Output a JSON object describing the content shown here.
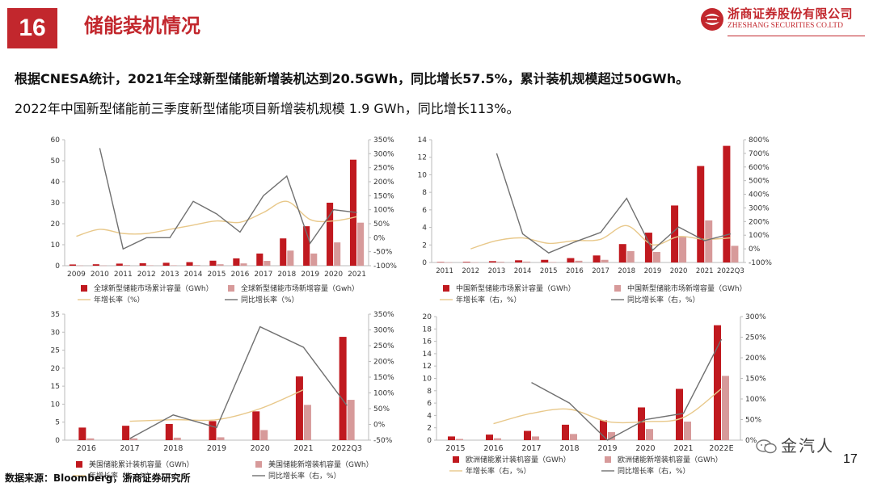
{
  "header": {
    "section_number": "16",
    "title": "储能装机情况",
    "logo_cn": "浙商证券股份有限公司",
    "logo_en": "ZHESHANG SECURITIES CO.LTD"
  },
  "summary": {
    "line1": "根据CNESA统计，2021年全球新型储能新增装机达到20.5GWh，同比增长57.5%，累计装机规模超过50GWh。",
    "line2": "2022年中国新型储能前三季度新型储能项目新增装机规模 1.9 GWh，同比增长113%。"
  },
  "colors": {
    "bar_dark": "#c0191f",
    "bar_light": "#d79a9a",
    "line_yellow": "#e8c88a",
    "line_gray": "#707070",
    "brand": "#c2272d"
  },
  "chart_data": [
    {
      "type": "bar",
      "id": "global",
      "categories": [
        "2009",
        "2010",
        "2011",
        "2012",
        "2013",
        "2014",
        "2015",
        "2016",
        "2017",
        "2018",
        "2019",
        "2020",
        "2021"
      ],
      "left_axis": {
        "min": 0,
        "max": 60,
        "ticks": [
          "0",
          "10",
          "20",
          "30",
          "40",
          "50",
          "60"
        ]
      },
      "right_axis": {
        "min": -100,
        "max": 350,
        "ticks": [
          "-100%",
          "-50%",
          "0%",
          "50%",
          "100%",
          "150%",
          "200%",
          "250%",
          "300%",
          "350%"
        ]
      },
      "series": [
        {
          "name": "全球新型储能市场累计容量（GWh）",
          "kind": "bar",
          "axis": "left",
          "values": [
            0.6,
            0.7,
            1.0,
            1.2,
            1.4,
            1.7,
            2.4,
            3.5,
            5.8,
            13.0,
            18.8,
            30.0,
            50.5
          ]
        },
        {
          "name": "全球新型储能市场新增容量（Gwh）",
          "kind": "bar",
          "axis": "left",
          "values": [
            0.1,
            0.1,
            0.3,
            0.2,
            0.2,
            0.3,
            0.7,
            1.1,
            2.3,
            7.2,
            5.8,
            11.1,
            20.5
          ]
        },
        {
          "name": "年增长率（%）",
          "kind": "line",
          "axis": "right",
          "values": [
            5,
            30,
            15,
            15,
            30,
            45,
            60,
            55,
            90,
            130,
            65,
            60,
            75
          ]
        },
        {
          "name": "同比增长率（%）",
          "kind": "line",
          "axis": "right",
          "values": [
            null,
            320,
            -40,
            0,
            0,
            130,
            85,
            20,
            150,
            220,
            -20,
            100,
            90
          ]
        }
      ],
      "legend": [
        "全球新型储能市场累计容量（GWh）",
        "全球新型储能市场新增容量（Gwh）",
        "年增长率（%）",
        "同比增长率（%）"
      ]
    },
    {
      "type": "bar",
      "id": "china",
      "categories": [
        "2011",
        "2012",
        "2013",
        "2014",
        "2015",
        "2016",
        "2017",
        "2018",
        "2019",
        "2020",
        "2021",
        "2022Q3"
      ],
      "left_axis": {
        "min": 0,
        "max": 14,
        "ticks": [
          "0",
          "2",
          "4",
          "6",
          "8",
          "10",
          "12",
          "14"
        ]
      },
      "right_axis": {
        "min": -100,
        "max": 800,
        "ticks": [
          "-100%",
          "0%",
          "100%",
          "200%",
          "300%",
          "400%",
          "500%",
          "600%",
          "700%",
          "800%"
        ]
      },
      "series": [
        {
          "name": "中国新型储能市场累计容量（GWh）",
          "kind": "bar",
          "axis": "left",
          "values": [
            0.05,
            0.07,
            0.15,
            0.25,
            0.3,
            0.5,
            0.8,
            2.1,
            3.4,
            6.5,
            11.0,
            13.3
          ]
        },
        {
          "name": "中国新型储能市场新增容量（GWh）",
          "kind": "bar",
          "axis": "left",
          "values": [
            0.01,
            0.02,
            0.08,
            0.1,
            0.05,
            0.2,
            0.3,
            1.3,
            1.2,
            3.0,
            4.8,
            1.9
          ]
        },
        {
          "name": "年增长率（右，%）",
          "kind": "line",
          "axis": "right",
          "values": [
            null,
            0,
            60,
            80,
            40,
            60,
            70,
            170,
            30,
            90,
            70,
            80
          ]
        },
        {
          "name": "同比增长率（右，%）",
          "kind": "line",
          "axis": "right",
          "values": [
            null,
            null,
            700,
            110,
            -30,
            50,
            120,
            370,
            -10,
            160,
            60,
            110
          ]
        }
      ],
      "legend": [
        "中国新型储能市场累计容量（GWh）",
        "中国新型储能市场新增容量（GWh）",
        "年增长率（右，%）",
        "同比增长率（右，%）"
      ]
    },
    {
      "type": "bar",
      "id": "us",
      "categories": [
        "2016",
        "2017",
        "2018",
        "2019",
        "2020",
        "2021",
        "2022Q3"
      ],
      "left_axis": {
        "min": 0,
        "max": 35,
        "ticks": [
          "0",
          "5",
          "10",
          "15",
          "20",
          "25",
          "30",
          "35"
        ]
      },
      "right_axis": {
        "min": -50,
        "max": 350,
        "ticks": [
          "-50%",
          "0%",
          "50%",
          "100%",
          "150%",
          "200%",
          "250%",
          "300%",
          "350%"
        ]
      },
      "series": [
        {
          "name": "美国储能累计装机容量（GWh）",
          "kind": "bar",
          "axis": "left",
          "values": [
            3.5,
            4.0,
            4.5,
            5.3,
            8.0,
            17.7,
            28.7
          ]
        },
        {
          "name": "美国储能新增装机容量（GWh）",
          "kind": "bar",
          "axis": "left",
          "values": [
            0.5,
            0.5,
            0.7,
            0.8,
            2.8,
            9.8,
            11.2
          ]
        },
        {
          "name": "年增长率（右，%）",
          "kind": "line",
          "axis": "right",
          "values": [
            null,
            10,
            15,
            15,
            50,
            110,
            null
          ]
        },
        {
          "name": "同比增长率（右，%）",
          "kind": "line",
          "axis": "right",
          "values": [
            null,
            -45,
            30,
            -10,
            310,
            245,
            60
          ]
        }
      ],
      "legend": [
        "美国储能累计装机容量（GWh）",
        "美国储能新增装机容量（GWh）",
        "年增长率（右，%）",
        "同比增长率（右，%）"
      ]
    },
    {
      "type": "bar",
      "id": "europe",
      "categories": [
        "2015",
        "2016",
        "2017",
        "2018",
        "2019",
        "2020",
        "2021",
        "2022E"
      ],
      "left_axis": {
        "min": 0,
        "max": 20,
        "ticks": [
          "0",
          "2",
          "4",
          "6",
          "8",
          "10",
          "12",
          "14",
          "16",
          "18",
          "20"
        ]
      },
      "right_axis": {
        "min": 0,
        "max": 300,
        "ticks": [
          "0%",
          "50%",
          "100%",
          "150%",
          "200%",
          "250%",
          "300%"
        ]
      },
      "series": [
        {
          "name": "欧洲储能累计装机容量（GWh）",
          "kind": "bar",
          "axis": "left",
          "values": [
            0.6,
            0.9,
            1.5,
            2.5,
            3.2,
            5.3,
            8.3,
            18.6
          ]
        },
        {
          "name": "欧洲储能新增装机容量（GWh）",
          "kind": "bar",
          "axis": "left",
          "values": [
            0.2,
            0.3,
            0.6,
            1.0,
            1.3,
            1.8,
            3.0,
            10.4
          ]
        },
        {
          "name": "年增长率（右，%）",
          "kind": "line",
          "axis": "right",
          "values": [
            null,
            40,
            65,
            75,
            45,
            45,
            55,
            125
          ]
        },
        {
          "name": "同比增长率（右，%）",
          "kind": "line",
          "axis": "right",
          "values": [
            null,
            null,
            140,
            90,
            0,
            50,
            65,
            245
          ]
        }
      ],
      "legend": [
        "欧洲储能累计装机容量（GWh）",
        "欧洲储能新增装机容量（GWh）",
        "年增长率（右，%）",
        "同比增长率（右，%）"
      ]
    }
  ],
  "footer": {
    "source": "数据来源：Bloomberg，浙商证券研究所",
    "page_number": "17",
    "watermark": "金汽人"
  }
}
